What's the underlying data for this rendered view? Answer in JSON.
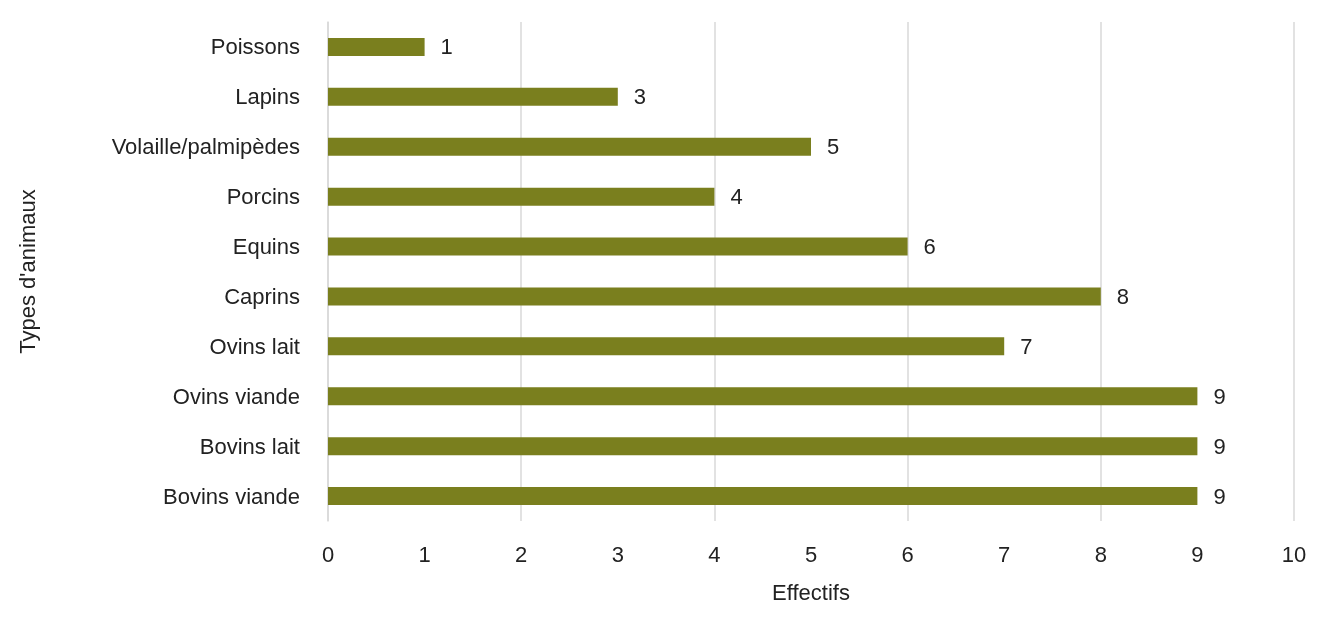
{
  "chart_data": {
    "type": "bar",
    "orientation": "horizontal",
    "xlabel": "Effectifs",
    "ylabel": "Types d'animaux",
    "categories": [
      "Poissons",
      "Lapins",
      "Volaille/palmipèdes",
      "Porcins",
      "Equins",
      "Caprins",
      "Ovins lait",
      "Ovins viande",
      "Bovins lait",
      "Bovins viande"
    ],
    "values": [
      1,
      3,
      5,
      4,
      6,
      8,
      7,
      9,
      9,
      9
    ],
    "color": "#7a7f1e",
    "xlim": [
      0,
      10
    ],
    "xticks": [
      0,
      1,
      2,
      3,
      4,
      5,
      6,
      7,
      8,
      9,
      10
    ],
    "grid": "x",
    "data_labels": true
  }
}
